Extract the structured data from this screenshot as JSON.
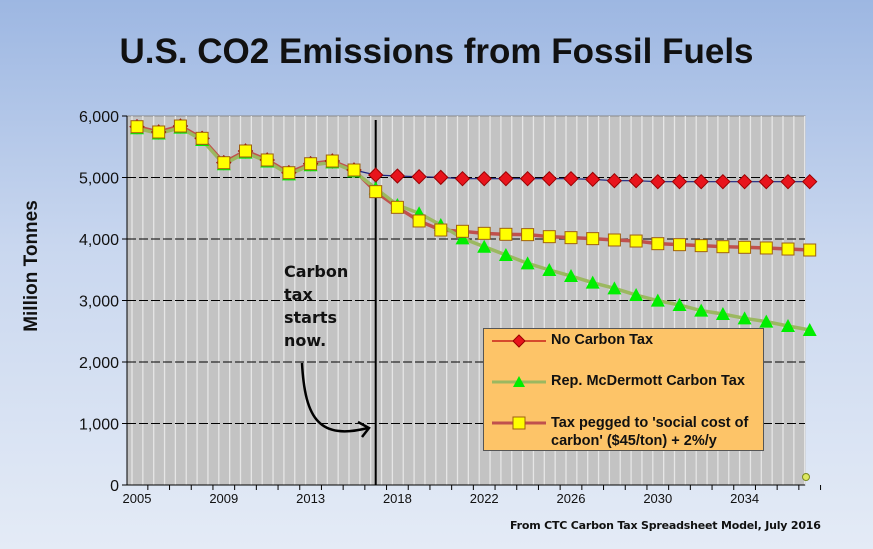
{
  "chart_data": {
    "type": "line",
    "title": "U.S. CO2 Emissions from Fossil Fuels",
    "ylabel": "Million Tonnes",
    "xlabel": "",
    "ylim": [
      0,
      6000
    ],
    "yticks": [
      "0",
      "1,000",
      "2,000",
      "3,000",
      "4,000",
      "5,000",
      "6,000"
    ],
    "categories": [
      "2005",
      "",
      "",
      "",
      "2009",
      "",
      "",
      "",
      "2013",
      "",
      "",
      "",
      "2018",
      "",
      "",
      "",
      "2022",
      "",
      "",
      "",
      "2026",
      "",
      "",
      "",
      "2030",
      "",
      "",
      "",
      "2034",
      "",
      "",
      ""
    ],
    "grid": "horizontal dashed",
    "legend_position": "lower-right",
    "annotation": "Carbon tax starts now.",
    "annotation_marker_category_index": 11,
    "series": [
      {
        "name": "No Carbon Tax",
        "color": "#e8141c",
        "line_color": "#1a237e",
        "marker": "diamond",
        "values": [
          5826,
          5740,
          5837,
          5637,
          5241,
          5431,
          5285,
          5078,
          5224,
          5268,
          5122,
          5041,
          5024,
          5013,
          5002,
          4981,
          4981,
          4981,
          4981,
          4981,
          4981,
          4970,
          4948,
          4948,
          4932,
          4932,
          4932,
          4932,
          4932,
          4932,
          4932,
          4932
        ]
      },
      {
        "name": "Rep. McDermott Carbon Tax",
        "color": "#00ee00",
        "line_color": "#9bb860",
        "marker": "triangle",
        "values": [
          5800,
          5715,
          5810,
          5610,
          5215,
          5405,
          5260,
          5050,
          5200,
          5245,
          5100,
          4824,
          4553,
          4418,
          4228,
          4011,
          3875,
          3740,
          3604,
          3496,
          3398,
          3290,
          3198,
          3089,
          2997,
          2927,
          2835,
          2780,
          2710,
          2656,
          2585,
          2520
        ]
      },
      {
        "name": "Tax pegged to 'social cost of carbon' ($45/ton) + 2%/y",
        "color": "#ffff00",
        "line_color": "#c0504d",
        "marker": "square",
        "values": [
          5826,
          5740,
          5837,
          5637,
          5241,
          5431,
          5285,
          5078,
          5224,
          5268,
          5122,
          4770,
          4515,
          4293,
          4146,
          4125,
          4092,
          4076,
          4071,
          4038,
          4022,
          4006,
          3984,
          3967,
          3924,
          3908,
          3892,
          3875,
          3865,
          3854,
          3837,
          3821
        ]
      }
    ],
    "source": "From CTC Carbon Tax Spreadsheet Model, July 2016"
  }
}
